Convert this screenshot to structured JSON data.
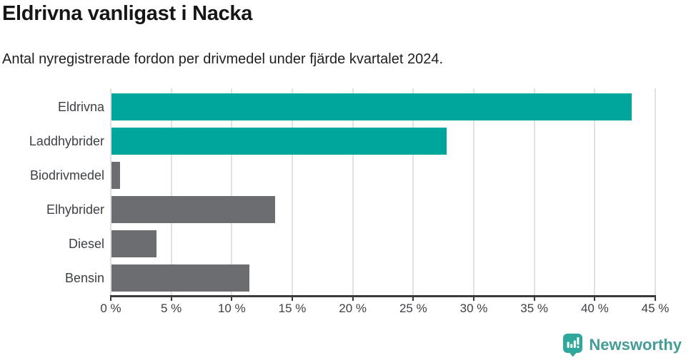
{
  "title": "Eldrivna vanligast i Nacka",
  "subtitle": "Antal nyregistrerade fordon per drivmedel under fjärde kvartalet 2024.",
  "chart_data": {
    "type": "bar",
    "orientation": "horizontal",
    "title": "Eldrivna vanligast i Nacka",
    "subtitle": "Antal nyregistrerade fordon per drivmedel under fjärde kvartalet 2024.",
    "categories": [
      "Eldrivna",
      "Laddhybrider",
      "Biodrivmedel",
      "Elhybrider",
      "Diesel",
      "Bensin"
    ],
    "values": [
      43.0,
      27.7,
      0.7,
      13.5,
      3.7,
      11.4
    ],
    "unit": "%",
    "xlim": [
      0,
      45
    ],
    "xtick_values": [
      0,
      5,
      10,
      15,
      20,
      25,
      30,
      35,
      40,
      45
    ],
    "xtick_labels": [
      "0 %",
      "5 %",
      "10 %",
      "15 %",
      "20 %",
      "25 %",
      "30 %",
      "35 %",
      "40 %",
      "45 %"
    ],
    "grid": true,
    "legend": "none",
    "colors": {
      "highlight": "#00a69c",
      "base": "#6c6d71",
      "bar_colors": [
        "#00a69c",
        "#00a69c",
        "#6c6d71",
        "#6c6d71",
        "#6c6d71",
        "#6c6d71"
      ],
      "gridline": "#e1e1e1",
      "axis": "#3a3a3a",
      "label_text": "#3d4045"
    }
  },
  "footer": {
    "brand": "Newsworthy",
    "logo_icon": "bar-chart-speech-bubble-icon",
    "icon_color": "#2fa89b",
    "text_color": "#459c96"
  }
}
